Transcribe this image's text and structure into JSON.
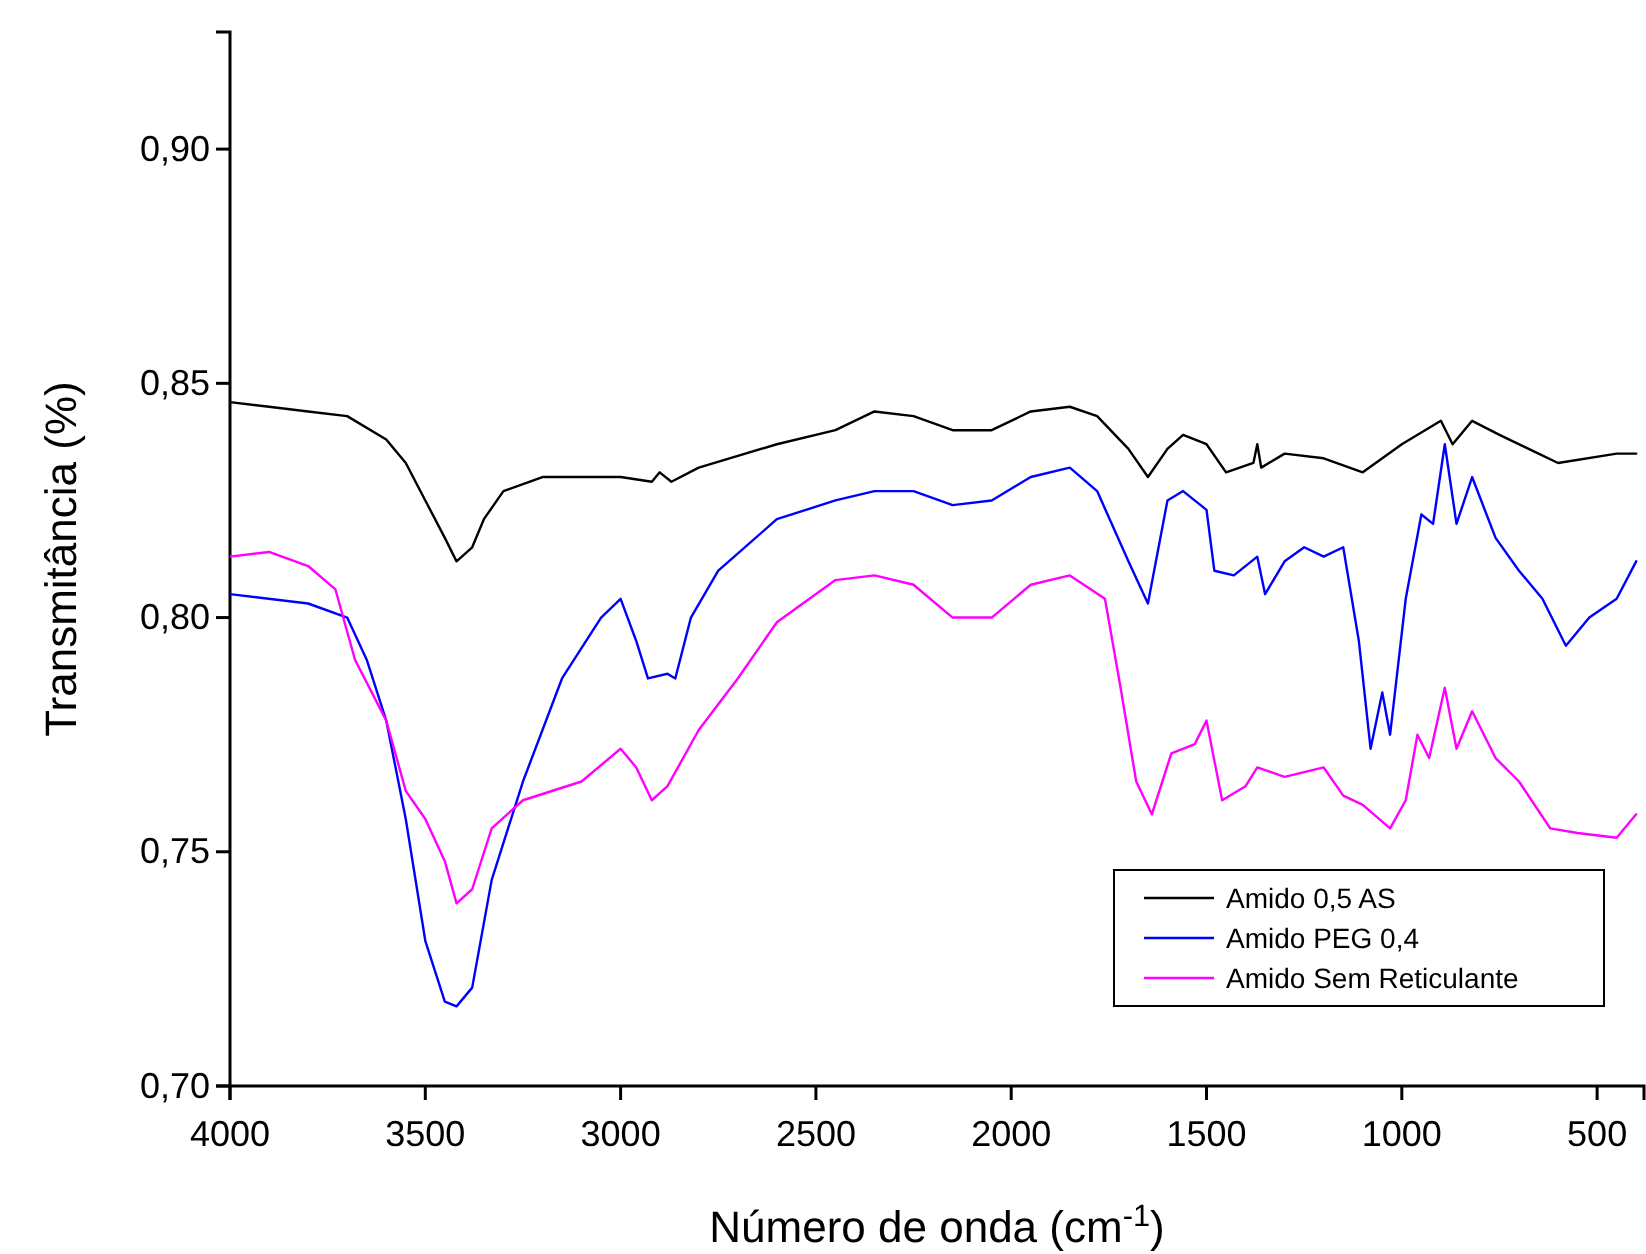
{
  "chart_data": {
    "type": "line",
    "xlabel": "Número de onda (cm$^{-1}$)",
    "ylabel": "Transmitância (%)",
    "xlim": [
      4000,
      380
    ],
    "xticks": [
      4000,
      3500,
      3000,
      2500,
      2000,
      1500,
      1000,
      500
    ],
    "ylim": [
      0.7,
      0.925
    ],
    "yticks": [
      {
        "value": 0.7,
        "label": "0,70"
      },
      {
        "value": 0.75,
        "label": "0,75"
      },
      {
        "value": 0.8,
        "label": "0,80"
      },
      {
        "value": 0.85,
        "label": "0,85"
      },
      {
        "value": 0.9,
        "label": "0,90"
      }
    ],
    "grid": false,
    "legend": "bottom right",
    "marker": "none",
    "line_style": "solid",
    "series": [
      {
        "name": "Amido 0,5 AS",
        "color": "#000000",
        "x": [
          4000,
          3900,
          3800,
          3700,
          3600,
          3550,
          3500,
          3450,
          3420,
          3380,
          3350,
          3300,
          3200,
          3000,
          2920,
          2900,
          2870,
          2800,
          2600,
          2450,
          2350,
          2250,
          2150,
          2050,
          1950,
          1850,
          1780,
          1700,
          1650,
          1600,
          1560,
          1500,
          1450,
          1380,
          1370,
          1360,
          1300,
          1200,
          1100,
          1000,
          900,
          870,
          820,
          750,
          650,
          600,
          450,
          400
        ],
        "values": [
          0.846,
          0.845,
          0.844,
          0.843,
          0.838,
          0.833,
          0.825,
          0.817,
          0.812,
          0.815,
          0.821,
          0.827,
          0.83,
          0.83,
          0.829,
          0.831,
          0.829,
          0.832,
          0.837,
          0.84,
          0.844,
          0.843,
          0.84,
          0.84,
          0.844,
          0.845,
          0.843,
          0.836,
          0.83,
          0.836,
          0.839,
          0.837,
          0.831,
          0.833,
          0.837,
          0.832,
          0.835,
          0.834,
          0.831,
          0.837,
          0.842,
          0.837,
          0.842,
          0.839,
          0.835,
          0.833,
          0.835,
          0.835
        ]
      },
      {
        "name": "Amido PEG 0,4",
        "color": "#0000ff",
        "x": [
          4000,
          3800,
          3700,
          3650,
          3600,
          3550,
          3500,
          3450,
          3420,
          3380,
          3330,
          3250,
          3150,
          3050,
          3000,
          2960,
          2930,
          2880,
          2860,
          2820,
          2750,
          2600,
          2450,
          2350,
          2250,
          2150,
          2050,
          1950,
          1850,
          1780,
          1700,
          1650,
          1600,
          1560,
          1500,
          1480,
          1430,
          1370,
          1350,
          1300,
          1250,
          1200,
          1150,
          1110,
          1080,
          1050,
          1030,
          990,
          950,
          920,
          890,
          860,
          820,
          760,
          700,
          640,
          580,
          520,
          450,
          400
        ],
        "values": [
          0.805,
          0.803,
          0.8,
          0.791,
          0.778,
          0.757,
          0.731,
          0.718,
          0.717,
          0.721,
          0.744,
          0.765,
          0.787,
          0.8,
          0.804,
          0.795,
          0.787,
          0.788,
          0.787,
          0.8,
          0.81,
          0.821,
          0.825,
          0.827,
          0.827,
          0.824,
          0.825,
          0.83,
          0.832,
          0.827,
          0.812,
          0.803,
          0.825,
          0.827,
          0.823,
          0.81,
          0.809,
          0.813,
          0.805,
          0.812,
          0.815,
          0.813,
          0.815,
          0.795,
          0.772,
          0.784,
          0.775,
          0.804,
          0.822,
          0.82,
          0.837,
          0.82,
          0.83,
          0.817,
          0.81,
          0.804,
          0.794,
          0.8,
          0.804,
          0.812
        ]
      },
      {
        "name": "Amido Sem Reticulante",
        "color": "#ff00ff",
        "x": [
          4000,
          3900,
          3800,
          3730,
          3680,
          3600,
          3550,
          3500,
          3450,
          3420,
          3380,
          3330,
          3250,
          3100,
          3000,
          2960,
          2920,
          2880,
          2800,
          2700,
          2600,
          2450,
          2350,
          2250,
          2150,
          2050,
          1950,
          1850,
          1760,
          1720,
          1680,
          1640,
          1590,
          1530,
          1500,
          1460,
          1400,
          1370,
          1300,
          1200,
          1150,
          1100,
          1030,
          990,
          960,
          930,
          890,
          860,
          820,
          760,
          700,
          620,
          550,
          450,
          400
        ],
        "values": [
          0.813,
          0.814,
          0.811,
          0.806,
          0.791,
          0.778,
          0.763,
          0.757,
          0.748,
          0.739,
          0.742,
          0.755,
          0.761,
          0.765,
          0.772,
          0.768,
          0.761,
          0.764,
          0.776,
          0.787,
          0.799,
          0.808,
          0.809,
          0.807,
          0.8,
          0.8,
          0.807,
          0.809,
          0.804,
          0.785,
          0.765,
          0.758,
          0.771,
          0.773,
          0.778,
          0.761,
          0.764,
          0.768,
          0.766,
          0.768,
          0.762,
          0.76,
          0.755,
          0.761,
          0.775,
          0.77,
          0.785,
          0.772,
          0.78,
          0.77,
          0.765,
          0.755,
          0.754,
          0.753,
          0.758
        ]
      }
    ]
  }
}
